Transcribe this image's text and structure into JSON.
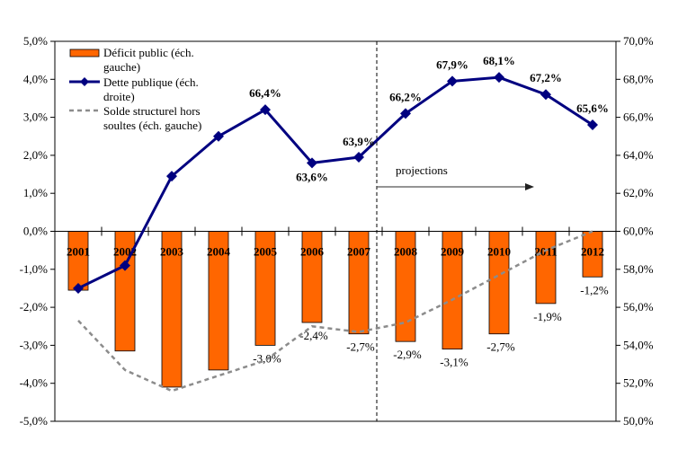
{
  "chart_data": {
    "type": "bar+line",
    "categories": [
      "2001",
      "2002",
      "2003",
      "2004",
      "2005",
      "2006",
      "2007",
      "2008",
      "2009",
      "2010",
      "2011",
      "2012"
    ],
    "left_axis": {
      "min": -5,
      "max": 5,
      "ticks": [
        "5,0%",
        "4,0%",
        "3,0%",
        "2,0%",
        "1,0%",
        "0,0%",
        "-1,0%",
        "-2,0%",
        "-3,0%",
        "-4,0%",
        "-5,0%"
      ]
    },
    "right_axis": {
      "min": 50,
      "max": 70,
      "ticks": [
        "70,0%",
        "68,0%",
        "66,0%",
        "64,0%",
        "62,0%",
        "60,0%",
        "58,0%",
        "56,0%",
        "54,0%",
        "52,0%",
        "50,0%"
      ]
    },
    "series": [
      {
        "name": "Déficit public (éch. gauche)",
        "legend_lines": [
          "Déficit public (éch.",
          "gauche)"
        ],
        "type": "bar",
        "axis": "left",
        "color": "#FF6600",
        "values": [
          -1.55,
          -3.15,
          -4.1,
          -3.65,
          -3.0,
          -2.4,
          -2.7,
          -2.9,
          -3.1,
          -2.7,
          -1.9,
          -1.2
        ],
        "labels": [
          "",
          "",
          "",
          "",
          "-3,0%",
          "-2,4%",
          "-2,7%",
          "-2,9%",
          "-3,1%",
          "-2,7%",
          "-1,9%",
          "-1,2%"
        ]
      },
      {
        "name": "Dette publique (éch. droite)",
        "legend_lines": [
          "Dette publique (éch.",
          "droite)"
        ],
        "type": "line",
        "axis": "right",
        "color": "#000080",
        "values": [
          57.0,
          58.2,
          62.9,
          65.0,
          66.4,
          63.6,
          63.9,
          66.2,
          67.9,
          68.1,
          67.2,
          65.6
        ],
        "labels": [
          "",
          "",
          "",
          "",
          "66,4%",
          "63,6%",
          "63,9%",
          "66,2%",
          "67,9%",
          "68,1%",
          "67,2%",
          "65,6%"
        ]
      },
      {
        "name": "Solde structurel hors soultes (éch. gauche)",
        "legend_lines": [
          "Solde structurel hors",
          "soultes (éch. gauche)"
        ],
        "type": "line-dashed",
        "axis": "left",
        "color": "#8C8C8C",
        "values": [
          -2.35,
          -3.65,
          -4.2,
          -3.8,
          -3.4,
          -2.5,
          -2.65,
          -2.4,
          -1.8,
          -1.15,
          -0.5,
          0.0
        ]
      }
    ],
    "annotation": {
      "text": "projections",
      "from_category": "2008"
    },
    "legend_position": "top-left"
  }
}
